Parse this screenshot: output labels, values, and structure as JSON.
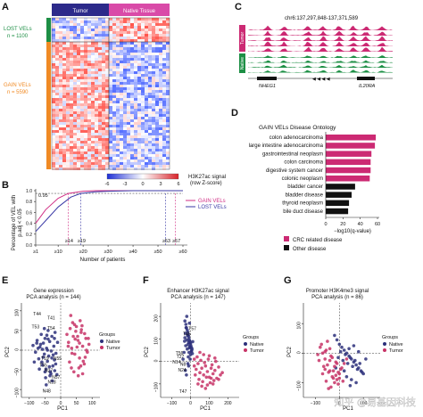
{
  "colors": {
    "crc": "#cc2a73",
    "other": "#111111",
    "lost": "#3b3aa6",
    "gain": "#d12f85",
    "lost_bar": "#1d8f45",
    "gain_bar": "#f08a24",
    "tumor_bar": "#2c2a8a",
    "native_bar": "#d94aa8",
    "native_dot": "#2b2f7a",
    "tumor_dot": "#c73266"
  },
  "panelA": {
    "label": "A",
    "col_labels": [
      "Tumor",
      "Native Tissue"
    ],
    "row_groups": [
      {
        "name": "LOST VELs",
        "n": "n = 1100"
      },
      {
        "name": "GAIN VELs",
        "n": "n = 5590"
      }
    ],
    "colorbar_ticks": [
      "-6",
      "-3",
      "0",
      "3",
      "6"
    ],
    "colorbar_title": "H3K27ac signal",
    "colorbar_subtitle": "(row Z-score)"
  },
  "panelC": {
    "label": "C",
    "coords": "chr6:137,297,848-137,371,589",
    "groups": [
      "Tumor",
      "Native"
    ],
    "gene_left": "NHEG1",
    "gene_right": "IL20RA"
  },
  "panelB": {
    "label": "B",
    "ylabel_lines": [
      "Percentage of VEL with",
      "p.adj < 0.05"
    ],
    "xlabel": "Number of patients",
    "ytick_labels": [
      "0.0",
      "0.2",
      "0.4",
      "0.6",
      "0.8",
      "1.0"
    ],
    "xtick_labels": [
      "≥1",
      "≥10",
      "≥20",
      "≥30",
      "≥40",
      "≥50",
      "≥60"
    ],
    "threshold_label": "0.95",
    "marker_labels": [
      "≥14",
      "≥19",
      "≥53",
      "≥57"
    ],
    "legend": [
      "GAIN VELs",
      "LOST VELs"
    ]
  },
  "panelD": {
    "label": "D",
    "title": "GAIN VELs Disease Ontology",
    "xticks": [
      "0",
      "20",
      "40",
      "60"
    ],
    "xlabel": "−log10(q-value)",
    "legend": [
      "CRC related disease",
      "Other disease"
    ]
  },
  "panelE": {
    "label": "E",
    "title_lines": [
      "Gene expression",
      "PCA analysis (n = 144)"
    ],
    "xlabel": "PC1",
    "ylabel": "PC2",
    "xticks": [
      "−100",
      "−50",
      "0",
      "50",
      "100"
    ],
    "yticks": [
      "−100",
      "−50",
      "0",
      "50",
      "100"
    ],
    "groups_title": "Groups",
    "groups": [
      "Native",
      "Tumor"
    ],
    "annotations": [
      "T44",
      "T41",
      "T53",
      "T54",
      "T19",
      "N55",
      "T55",
      "N27",
      "N18",
      "N48",
      "N57"
    ]
  },
  "panelF": {
    "label": "F",
    "title_lines": [
      "Enhancer H3K27ac signal",
      "PCA analysis (n = 147)"
    ],
    "xlabel": "PC1",
    "ylabel": "PC2",
    "xticks": [
      "−100",
      "0",
      "100",
      "200"
    ],
    "yticks": [
      "−100",
      "0",
      "100",
      "200"
    ],
    "groups_title": "Groups",
    "groups": [
      "Native",
      "Tumor"
    ],
    "annotations": [
      "T57",
      "T45",
      "T56",
      "T27",
      "N14",
      "N8",
      "N24",
      "T47"
    ]
  },
  "panelG": {
    "label": "G",
    "title_lines": [
      "Promoter H3K4me3 signal",
      "PCA analysis (n = 86)"
    ],
    "xlabel": "PC1",
    "ylabel": "PC2",
    "xticks": [
      "−100",
      "0",
      "100"
    ],
    "yticks": [
      "−100",
      "0",
      "100"
    ],
    "groups_title": "Groups",
    "groups": [
      "Native",
      "Tumor"
    ]
  },
  "watermark": "知乎 @易基因科技",
  "chart_data": [
    {
      "type": "line",
      "panel": "B",
      "xlabel": "Number of patients",
      "ylabel": "Percentage of VEL with p.adj < 0.05",
      "xlim": [
        1,
        60
      ],
      "ylim": [
        0,
        1
      ],
      "threshold": 0.95,
      "series": [
        {
          "name": "GAIN VELs",
          "x": [
            1,
            5,
            10,
            14,
            20,
            25,
            30,
            40,
            50,
            57,
            60
          ],
          "values": [
            0.4,
            0.65,
            0.86,
            0.95,
            0.99,
            1.0,
            1.0,
            1.0,
            1.0,
            1.0,
            1.0
          ]
        },
        {
          "name": "LOST VELs",
          "x": [
            1,
            5,
            10,
            15,
            19,
            25,
            30,
            40,
            53,
            60
          ],
          "values": [
            0.25,
            0.45,
            0.7,
            0.88,
            0.95,
            0.98,
            0.99,
            1.0,
            1.0,
            1.0
          ]
        }
      ],
      "markers_x": [
        14,
        19,
        53,
        57
      ]
    },
    {
      "type": "bar",
      "panel": "D",
      "title": "GAIN VELs Disease Ontology",
      "xlabel": "−log10(q-value)",
      "xlim": [
        0,
        60
      ],
      "categories": [
        "colon adenocarcinoma",
        "large intestine adenocarcinoma",
        "gastrointestinal neoplasm",
        "colon carcinoma",
        "digestive system cancer",
        "colonic neoplasm",
        "bladder cancer",
        "bladder disease",
        "thyroid neoplasm",
        "bile duct disease"
      ],
      "values": [
        58,
        57,
        53,
        52,
        52,
        51,
        34,
        30,
        27,
        26
      ],
      "groups": [
        "CRC related disease",
        "CRC related disease",
        "CRC related disease",
        "CRC related disease",
        "CRC related disease",
        "CRC related disease",
        "Other disease",
        "Other disease",
        "Other disease",
        "Other disease"
      ]
    },
    {
      "type": "scatter",
      "panel": "E",
      "xlim": [
        -125,
        125
      ],
      "ylim": [
        -120,
        120
      ],
      "series": [
        {
          "name": "Native",
          "x": [
            -88,
            -80,
            -75,
            -70,
            -66,
            -62,
            -58,
            -55,
            -52,
            -50,
            -47,
            -45,
            -42,
            -40,
            -38,
            -35,
            -33,
            -30,
            -28,
            -25,
            -22,
            -20,
            -18,
            -15,
            -12,
            -10,
            -60,
            -72,
            -48,
            -36,
            -27,
            -19,
            -64,
            -56,
            -44,
            -31,
            -24,
            -16,
            -52,
            -40,
            -84,
            -68,
            -46,
            -34,
            -58,
            -28,
            -20,
            -42,
            -76,
            -50
          ],
          "values": [
            12,
            -5,
            25,
            -22,
            8,
            40,
            -38,
            18,
            -10,
            30,
            -48,
            5,
            -28,
            50,
            -15,
            22,
            -55,
            -2,
            35,
            -40,
            10,
            -25,
            45,
            -8,
            -62,
            20,
            -30,
            5,
            -70,
            -42,
            -78,
            -52,
            15,
            -18,
            38,
            -60,
            -12,
            -35,
            55,
            28,
            -30,
            -48,
            -88,
            -65,
            2,
            -20,
            30,
            0,
            18,
            -55
          ]
        },
        {
          "name": "Tumor",
          "x": [
            20,
            25,
            30,
            35,
            40,
            45,
            50,
            55,
            60,
            65,
            70,
            75,
            80,
            85,
            90,
            28,
            38,
            48,
            58,
            68,
            78,
            42,
            52,
            62,
            72,
            32,
            46,
            56,
            66,
            76,
            36,
            54,
            64,
            82,
            44,
            60,
            70,
            24,
            34,
            88
          ],
          "values": [
            40,
            20,
            55,
            5,
            35,
            -10,
            60,
            25,
            -20,
            45,
            10,
            -35,
            30,
            -5,
            15,
            -30,
            70,
            48,
            -45,
            62,
            -18,
            -55,
            8,
            75,
            -28,
            88,
            28,
            -65,
            52,
            42,
            -8,
            35,
            -40,
            0,
            65,
            18,
            -60,
            10,
            -45,
            30
          ]
        }
      ]
    },
    {
      "type": "scatter",
      "panel": "F",
      "xlim": [
        -160,
        260
      ],
      "ylim": [
        -160,
        260
      ],
      "series": [
        {
          "name": "Native",
          "x": [
            -30,
            -25,
            -22,
            -18,
            -15,
            -12,
            -10,
            -8,
            -5,
            -2,
            0,
            2,
            5,
            8,
            -28,
            -20,
            -14,
            -6,
            4,
            -24,
            -16,
            -10,
            -4,
            6,
            -32,
            -18,
            -8,
            0,
            -26,
            -12,
            -2,
            10,
            -20,
            -6,
            -14,
            -28,
            -35,
            -40,
            -10,
            -22,
            12,
            -30
          ],
          "values": [
            180,
            165,
            150,
            140,
            130,
            120,
            110,
            100,
            92,
            85,
            78,
            70,
            62,
            55,
            125,
            95,
            75,
            60,
            45,
            150,
            115,
            85,
            65,
            48,
            90,
            55,
            40,
            30,
            70,
            20,
            10,
            35,
            200,
            170,
            -10,
            -40,
            40,
            10,
            -20,
            -60,
            88,
            105
          ]
        },
        {
          "name": "Tumor",
          "x": [
            20,
            30,
            40,
            50,
            60,
            70,
            80,
            90,
            100,
            110,
            120,
            130,
            140,
            150,
            160,
            170,
            35,
            55,
            75,
            95,
            115,
            135,
            45,
            65,
            85,
            105,
            125,
            25,
            60,
            90,
            120,
            150,
            70,
            100,
            130,
            40,
            80,
            110,
            50,
            20
          ],
          "values": [
            -20,
            -35,
            -10,
            -50,
            -30,
            -60,
            -20,
            -45,
            -70,
            -30,
            -55,
            -40,
            -75,
            -25,
            -60,
            -50,
            20,
            5,
            -5,
            10,
            -15,
            0,
            -80,
            -90,
            -70,
            -95,
            -85,
            -60,
            -110,
            -105,
            -100,
            -80,
            30,
            25,
            15,
            -100,
            -120,
            -75,
            40,
            10
          ]
        }
      ]
    },
    {
      "type": "scatter",
      "panel": "G",
      "xlim": [
        -150,
        170
      ],
      "ylim": [
        -150,
        170
      ],
      "series": [
        {
          "name": "Native",
          "x": [
            -20,
            -10,
            0,
            10,
            20,
            30,
            40,
            50,
            60,
            70,
            80,
            90,
            -5,
            15,
            35,
            55,
            75,
            95,
            5,
            25,
            45,
            65,
            85,
            40,
            60,
            30,
            50,
            100,
            110,
            70,
            -15,
            20,
            45,
            80
          ],
          "values": [
            60,
            45,
            30,
            20,
            10,
            0,
            -10,
            -20,
            -30,
            -40,
            -50,
            -60,
            -15,
            -25,
            -35,
            -45,
            -55,
            -65,
            5,
            -5,
            -15,
            -25,
            -35,
            15,
            25,
            -80,
            -90,
            -70,
            -20,
            -100,
            -50,
            -60,
            -110,
            5
          ]
        },
        {
          "name": "Tumor",
          "x": [
            -80,
            -70,
            -60,
            -50,
            -40,
            -30,
            -20,
            -10,
            0,
            10,
            -75,
            -55,
            -35,
            -15,
            5,
            -65,
            -45,
            -25,
            -5,
            -85,
            -60,
            -40,
            -20,
            0,
            -50,
            -30,
            -10,
            -70,
            -55,
            -35,
            -15,
            -90,
            20,
            30,
            -45,
            -25,
            -5,
            15,
            -60,
            -40
          ],
          "values": [
            20,
            0,
            -20,
            -40,
            -60,
            -80,
            -100,
            -90,
            -70,
            -50,
            30,
            10,
            -10,
            -30,
            -55,
            -45,
            -65,
            -85,
            -105,
            -25,
            5,
            -25,
            -45,
            -85,
            40,
            -15,
            -35,
            -70,
            -95,
            -115,
            -75,
            -5,
            -35,
            -20,
            -120,
            -60,
            -65,
            -95,
            -55,
            15
          ]
        }
      ]
    }
  ]
}
